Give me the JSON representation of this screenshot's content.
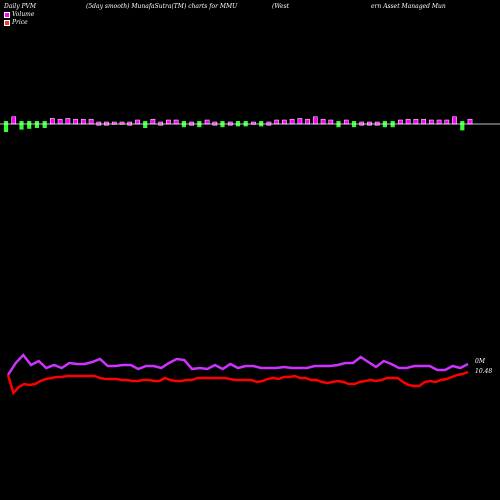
{
  "header": {
    "left": "Daily PVM",
    "mid": "(5day smooth) MunafaSutra(TM) charts for MMU",
    "right1": "(West",
    "right2": "ern Asset Managed Mun"
  },
  "legend": {
    "volume": "Volume",
    "price": "Price"
  },
  "labels": {
    "volume": "0M",
    "price": "10.48"
  },
  "colors": {
    "pos_bar": "#ff00ff",
    "neg_bar": "#33ff33",
    "bar_outline": "#ffffff",
    "volume_line": "#cc33ff",
    "price_line": "#ff0000",
    "baseline": "#ffffff",
    "background": "#000000"
  },
  "chart_data": {
    "type": "bar+line",
    "pvm_bars": [
      {
        "v": -1.0,
        "c": "neg"
      },
      {
        "v": 0.9,
        "c": "pos"
      },
      {
        "v": -0.7,
        "c": "neg"
      },
      {
        "v": -0.6,
        "c": "neg"
      },
      {
        "v": -0.5,
        "c": "neg"
      },
      {
        "v": -0.5,
        "c": "neg"
      },
      {
        "v": 0.7,
        "c": "pos"
      },
      {
        "v": 0.6,
        "c": "pos"
      },
      {
        "v": 0.7,
        "c": "pos"
      },
      {
        "v": 0.6,
        "c": "pos"
      },
      {
        "v": 0.6,
        "c": "pos"
      },
      {
        "v": 0.6,
        "c": "pos"
      },
      {
        "v": 0.4,
        "c": "pos"
      },
      {
        "v": 0.4,
        "c": "pos"
      },
      {
        "v": 0.3,
        "c": "pos"
      },
      {
        "v": 0.3,
        "c": "pos"
      },
      {
        "v": 0.4,
        "c": "pos"
      },
      {
        "v": 0.5,
        "c": "pos"
      },
      {
        "v": -0.5,
        "c": "neg"
      },
      {
        "v": 0.6,
        "c": "pos"
      },
      {
        "v": 0.4,
        "c": "pos"
      },
      {
        "v": 0.5,
        "c": "pos"
      },
      {
        "v": 0.5,
        "c": "pos"
      },
      {
        "v": -0.4,
        "c": "neg"
      },
      {
        "v": 0.4,
        "c": "pos"
      },
      {
        "v": -0.4,
        "c": "neg"
      },
      {
        "v": 0.5,
        "c": "pos"
      },
      {
        "v": 0.4,
        "c": "pos"
      },
      {
        "v": -0.4,
        "c": "neg"
      },
      {
        "v": 0.4,
        "c": "pos"
      },
      {
        "v": -0.3,
        "c": "neg"
      },
      {
        "v": -0.3,
        "c": "neg"
      },
      {
        "v": 0.3,
        "c": "pos"
      },
      {
        "v": -0.3,
        "c": "neg"
      },
      {
        "v": 0.4,
        "c": "pos"
      },
      {
        "v": 0.5,
        "c": "pos"
      },
      {
        "v": 0.5,
        "c": "pos"
      },
      {
        "v": 0.6,
        "c": "pos"
      },
      {
        "v": 0.7,
        "c": "pos"
      },
      {
        "v": 0.6,
        "c": "pos"
      },
      {
        "v": 0.9,
        "c": "pos"
      },
      {
        "v": 0.6,
        "c": "pos"
      },
      {
        "v": 0.5,
        "c": "pos"
      },
      {
        "v": -0.4,
        "c": "neg"
      },
      {
        "v": 0.5,
        "c": "pos"
      },
      {
        "v": -0.4,
        "c": "neg"
      },
      {
        "v": 0.4,
        "c": "pos"
      },
      {
        "v": 0.4,
        "c": "pos"
      },
      {
        "v": 0.4,
        "c": "pos"
      },
      {
        "v": -0.4,
        "c": "neg"
      },
      {
        "v": -0.4,
        "c": "neg"
      },
      {
        "v": 0.5,
        "c": "pos"
      },
      {
        "v": 0.6,
        "c": "pos"
      },
      {
        "v": 0.6,
        "c": "pos"
      },
      {
        "v": 0.6,
        "c": "pos"
      },
      {
        "v": 0.5,
        "c": "pos"
      },
      {
        "v": 0.5,
        "c": "pos"
      },
      {
        "v": 0.5,
        "c": "pos"
      },
      {
        "v": 0.9,
        "c": "pos"
      },
      {
        "v": -0.8,
        "c": "neg"
      },
      {
        "v": 0.6,
        "c": "pos"
      }
    ],
    "volume_line": [
      375,
      363,
      355,
      365,
      361,
      368,
      365,
      368,
      363,
      364,
      364,
      362,
      359,
      366,
      366,
      365,
      365,
      369,
      366,
      366,
      368,
      363,
      359,
      360,
      369,
      368,
      369,
      365,
      369,
      364,
      368,
      366,
      366,
      368,
      368,
      368,
      367,
      368,
      368,
      368,
      366,
      366,
      366,
      365,
      363,
      363,
      357,
      362,
      367,
      361,
      364,
      368,
      368,
      366,
      366,
      366,
      370,
      370,
      366,
      368,
      364
    ],
    "price_line": [
      375,
      393,
      387,
      384,
      385,
      384,
      381,
      379,
      378,
      377,
      377,
      376,
      376,
      376,
      376,
      376,
      376,
      378,
      379,
      379,
      379,
      380,
      380,
      381,
      381,
      380,
      380,
      381,
      381,
      378,
      380,
      381,
      381,
      380,
      380,
      378,
      378,
      378,
      378,
      378,
      378,
      379,
      380,
      380,
      380,
      380,
      382,
      381,
      379,
      378,
      379,
      377,
      377,
      376,
      378,
      378,
      380,
      380,
      382,
      383,
      382,
      381,
      382,
      384,
      384,
      382,
      381,
      380,
      381,
      380,
      378,
      378,
      378,
      382,
      385,
      386,
      386,
      382,
      381,
      382,
      380,
      379,
      377,
      375,
      374,
      372
    ]
  }
}
